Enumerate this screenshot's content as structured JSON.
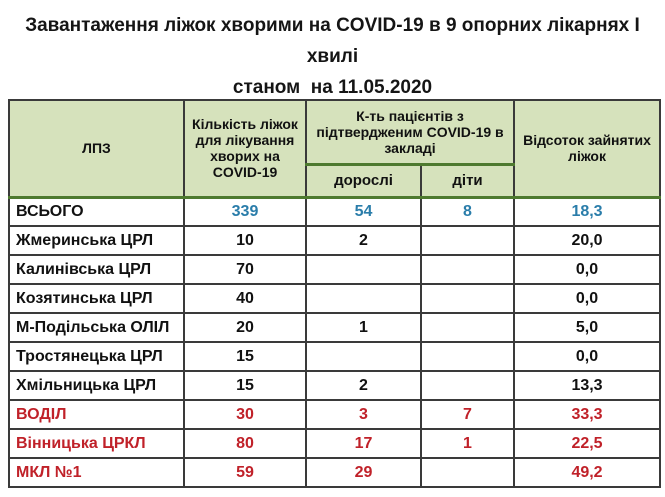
{
  "title": {
    "line1": "Завантаження ліжок хворими на COVID-19 в 9 опорних лікарнях І хвилі",
    "line2": "станом  на 11.05.2020"
  },
  "table": {
    "headers": {
      "col_lpz": "ЛПЗ",
      "col_beds": "Кількість ліжок для лікування хворих на  COVID-19",
      "col_patients": "К-ть пацієнтів з підтвердженим COVID-19 в закладі",
      "sub_adults": "дорослі",
      "sub_children": "діти",
      "col_percent": "Відсоток зайнятих ліжок"
    },
    "rows": [
      {
        "name": "ВСЬОГО",
        "beds": "339",
        "adults": "54",
        "children": "8",
        "percent": "18,3",
        "style": "total"
      },
      {
        "name": "Жмеринська ЦРЛ",
        "beds": "10",
        "adults": "2",
        "children": "",
        "percent": "20,0",
        "style": "normal"
      },
      {
        "name": "Калинівська ЦРЛ",
        "beds": "70",
        "adults": "",
        "children": "",
        "percent": "0,0",
        "style": "normal"
      },
      {
        "name": "Козятинська ЦРЛ",
        "beds": "40",
        "adults": "",
        "children": "",
        "percent": "0,0",
        "style": "normal"
      },
      {
        "name": "М-Подільська ОЛІЛ",
        "beds": "20",
        "adults": "1",
        "children": "",
        "percent": "5,0",
        "style": "normal"
      },
      {
        "name": "Тростянецька ЦРЛ",
        "beds": "15",
        "adults": "",
        "children": "",
        "percent": "0,0",
        "style": "normal"
      },
      {
        "name": "Хмільницька ЦРЛ",
        "beds": "15",
        "adults": "2",
        "children": "",
        "percent": "13,3",
        "style": "normal"
      },
      {
        "name": "ВОДІЛ",
        "beds": "30",
        "adults": "3",
        "children": "7",
        "percent": "33,3",
        "style": "red"
      },
      {
        "name": "Вінницька ЦРКЛ",
        "beds": "80",
        "adults": "17",
        "children": "1",
        "percent": "22,5",
        "style": "red"
      },
      {
        "name": "МКЛ №1",
        "beds": "59",
        "adults": "29",
        "children": "",
        "percent": "49,2",
        "style": "red"
      }
    ]
  },
  "colors": {
    "accent_blue": "#2a7daa",
    "accent_red": "#c02129",
    "header_green_bg": "#d6e2bc",
    "header_border_green": "#4e7a2f",
    "grid_border": "#3a3a3a"
  },
  "chart_data": {
    "type": "table",
    "title": "Завантаження ліжок хворими на COVID-19 в 9 опорних лікарнях І хвилі станом на 11.05.2020",
    "columns": [
      "ЛПЗ",
      "Кількість ліжок для лікування хворих на COVID-19",
      "К-ть пацієнтів з підтвердженим COVID-19 в закладі (дорослі)",
      "К-ть пацієнтів з підтвердженим COVID-19 в закладі (діти)",
      "Відсоток зайнятих ліжок"
    ],
    "rows": [
      [
        "ВСЬОГО",
        339,
        54,
        8,
        18.3
      ],
      [
        "Жмеринська ЦРЛ",
        10,
        2,
        null,
        20.0
      ],
      [
        "Калинівська ЦРЛ",
        70,
        null,
        null,
        0.0
      ],
      [
        "Козятинська ЦРЛ",
        40,
        null,
        null,
        0.0
      ],
      [
        "М-Подільська ОЛІЛ",
        20,
        1,
        null,
        5.0
      ],
      [
        "Тростянецька ЦРЛ",
        15,
        null,
        null,
        0.0
      ],
      [
        "Хмільницька ЦРЛ",
        15,
        2,
        null,
        13.3
      ],
      [
        "ВОДІЛ",
        30,
        3,
        7,
        33.3
      ],
      [
        "Вінницька ЦРКЛ",
        80,
        17,
        1,
        22.5
      ],
      [
        "МКЛ №1",
        59,
        29,
        null,
        49.2
      ]
    ]
  }
}
